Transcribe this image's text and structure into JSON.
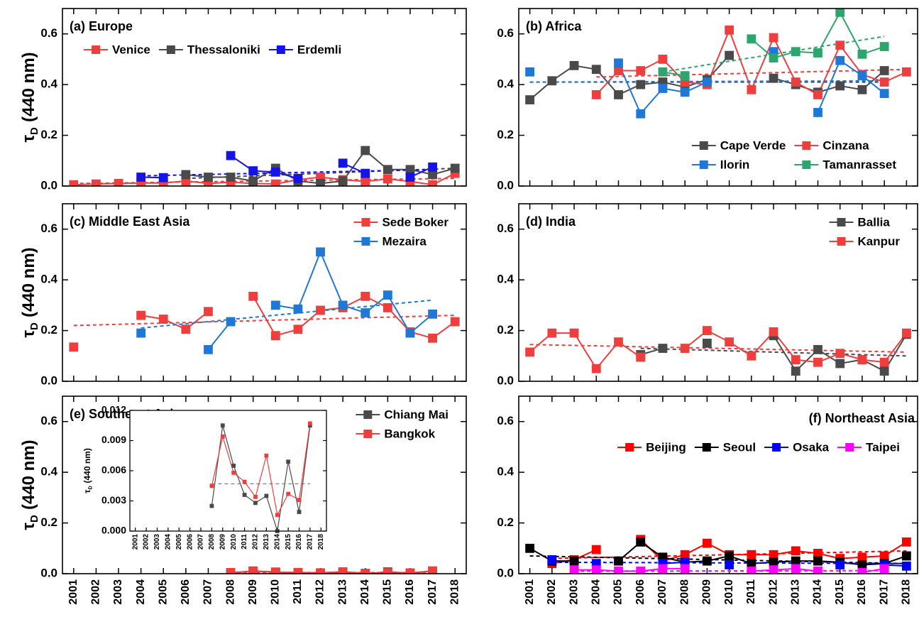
{
  "chart_data": [
    {
      "type": "line",
      "title": "(a) Europe",
      "title_loc": "upper-left",
      "ylabel": {
        "symbol": "τ",
        "sub": "D",
        "text": "(440 nm)"
      },
      "x": [
        2001,
        2002,
        2003,
        2004,
        2005,
        2006,
        2007,
        2008,
        2009,
        2010,
        2011,
        2012,
        2013,
        2014,
        2015,
        2016,
        2017,
        2018
      ],
      "xlim": [
        2000.5,
        2018.5
      ],
      "ylim": [
        0,
        0.7
      ],
      "yticks": [
        {
          "value": 0,
          "label": "0.0"
        },
        {
          "value": 0.2,
          "label": "0.2"
        },
        {
          "value": 0.4,
          "label": "0.4"
        },
        {
          "value": 0.6,
          "label": "0.6"
        }
      ],
      "xtick_labels": false,
      "legend": {
        "loc": "upper-left",
        "ncol": 3
      },
      "series": [
        {
          "name": "Venice",
          "color": "#ee3e3e",
          "values": [
            0.005,
            0.008,
            0.01,
            0.012,
            0.012,
            0.02,
            0.01,
            0.015,
            0.01,
            0.008,
            0.025,
            0.035,
            0.025,
            0.018,
            0.028,
            0.018,
            0.005,
            0.05
          ],
          "trend": {
            "x": [
              2001,
              2018
            ],
            "values": [
              0.01,
              0.03
            ]
          }
        },
        {
          "name": "Thessaloniki",
          "color": "#4a4a4a",
          "values": [
            null,
            null,
            null,
            null,
            null,
            0.045,
            0.035,
            0.035,
            0.02,
            0.07,
            0.02,
            0.01,
            0.02,
            0.14,
            0.065,
            0.065,
            0.045,
            0.07
          ],
          "trend": {
            "x": [
              2006,
              2018
            ],
            "values": [
              0.03,
              0.07
            ]
          }
        },
        {
          "name": "Erdemli",
          "color": "#1414e6",
          "values": [
            null,
            null,
            null,
            0.035,
            0.033,
            null,
            null,
            0.12,
            0.06,
            0.055,
            0.03,
            null,
            0.09,
            0.05,
            null,
            0.035,
            0.075,
            null
          ],
          "trend": {
            "x": [
              2004,
              2017
            ],
            "values": [
              0.04,
              0.065
            ]
          }
        }
      ]
    },
    {
      "type": "line",
      "title": "(b) Africa",
      "title_loc": "upper-left",
      "x": [
        2001,
        2002,
        2003,
        2004,
        2005,
        2006,
        2007,
        2008,
        2009,
        2010,
        2011,
        2012,
        2013,
        2014,
        2015,
        2016,
        2017,
        2018
      ],
      "xlim": [
        2000.5,
        2018.5
      ],
      "ylim": [
        0,
        0.7
      ],
      "yticks": [
        {
          "value": 0,
          "label": "0.0"
        },
        {
          "value": 0.2,
          "label": "0.2"
        },
        {
          "value": 0.4,
          "label": "0.4"
        },
        {
          "value": 0.6,
          "label": "0.6"
        }
      ],
      "xtick_labels": false,
      "legend": {
        "loc": "lower-right",
        "ncol": 2
      },
      "series": [
        {
          "name": "Cape Verde",
          "color": "#4a4a4a",
          "values": [
            0.34,
            0.415,
            0.475,
            0.46,
            0.36,
            0.4,
            0.41,
            0.39,
            0.42,
            0.515,
            null,
            0.425,
            0.4,
            0.37,
            0.395,
            0.38,
            0.455,
            null
          ],
          "trend": {
            "x": [
              2001,
              2017
            ],
            "values": [
              0.41,
              0.41
            ]
          }
        },
        {
          "name": "Cinzana",
          "color": "#ee3e3e",
          "values": [
            null,
            null,
            null,
            0.36,
            0.455,
            0.455,
            0.5,
            0.41,
            0.4,
            0.615,
            0.38,
            0.585,
            0.41,
            0.36,
            0.555,
            0.44,
            0.41,
            0.45
          ],
          "trend": {
            "x": [
              2004,
              2018
            ],
            "values": [
              0.43,
              0.46
            ]
          }
        },
        {
          "name": "Ilorin",
          "color": "#1f78d8",
          "values": [
            0.45,
            null,
            null,
            null,
            0.485,
            0.285,
            0.385,
            0.37,
            0.41,
            null,
            null,
            0.53,
            null,
            0.29,
            0.495,
            0.435,
            0.365,
            null
          ],
          "trend": {
            "x": [
              2001,
              2017
            ],
            "values": [
              0.41,
              0.415
            ]
          }
        },
        {
          "name": "Tamanrasset",
          "color": "#2ca66c",
          "values": [
            null,
            null,
            null,
            null,
            null,
            null,
            0.45,
            0.435,
            null,
            null,
            0.58,
            0.505,
            0.53,
            0.525,
            0.685,
            0.52,
            0.55,
            null
          ],
          "trend": {
            "x": [
              2007,
              2017
            ],
            "values": [
              0.45,
              0.59
            ]
          }
        }
      ]
    },
    {
      "type": "line",
      "title": "(c) Middle East Asia",
      "title_loc": "upper-left",
      "ylabel": {
        "symbol": "τ",
        "sub": "D",
        "text": "(440 nm)"
      },
      "x": [
        2001,
        2002,
        2003,
        2004,
        2005,
        2006,
        2007,
        2008,
        2009,
        2010,
        2011,
        2012,
        2013,
        2014,
        2015,
        2016,
        2017,
        2018
      ],
      "xlim": [
        2000.5,
        2018.5
      ],
      "ylim": [
        0,
        0.7
      ],
      "yticks": [
        {
          "value": 0,
          "label": "0.0"
        },
        {
          "value": 0.2,
          "label": "0.2"
        },
        {
          "value": 0.4,
          "label": "0.4"
        },
        {
          "value": 0.6,
          "label": "0.6"
        }
      ],
      "xtick_labels": false,
      "legend": {
        "loc": "upper-right",
        "ncol": 1
      },
      "series": [
        {
          "name": "Sede Boker",
          "color": "#ee3e3e",
          "values": [
            0.135,
            null,
            null,
            0.26,
            0.245,
            0.205,
            0.275,
            null,
            0.335,
            0.18,
            0.205,
            0.28,
            0.29,
            0.335,
            0.29,
            0.195,
            0.17,
            0.235
          ],
          "trend": {
            "x": [
              2001,
              2018
            ],
            "values": [
              0.22,
              0.26
            ]
          }
        },
        {
          "name": "Mezaira",
          "color": "#1f78d8",
          "values": [
            null,
            null,
            null,
            0.19,
            null,
            null,
            0.125,
            0.235,
            null,
            0.3,
            0.285,
            0.51,
            0.3,
            0.27,
            0.34,
            0.19,
            0.265,
            null
          ],
          "trend": {
            "x": [
              2004,
              2017
            ],
            "values": [
              0.21,
              0.32
            ]
          }
        }
      ]
    },
    {
      "type": "line",
      "title": "(d) India",
      "title_loc": "upper-left",
      "x": [
        2001,
        2002,
        2003,
        2004,
        2005,
        2006,
        2007,
        2008,
        2009,
        2010,
        2011,
        2012,
        2013,
        2014,
        2015,
        2016,
        2017,
        2018
      ],
      "xlim": [
        2000.5,
        2018.5
      ],
      "ylim": [
        0,
        0.7
      ],
      "yticks": [
        {
          "value": 0,
          "label": "0.0"
        },
        {
          "value": 0.2,
          "label": "0.2"
        },
        {
          "value": 0.4,
          "label": "0.4"
        },
        {
          "value": 0.6,
          "label": "0.6"
        }
      ],
      "xtick_labels": false,
      "legend": {
        "loc": "upper-right",
        "ncol": 1
      },
      "series": [
        {
          "name": "Ballia",
          "color": "#4a4a4a",
          "values": [
            null,
            null,
            null,
            null,
            null,
            0.105,
            0.13,
            null,
            0.15,
            null,
            null,
            0.18,
            0.04,
            0.125,
            0.07,
            0.085,
            0.04,
            0.185
          ],
          "trend": {
            "x": [
              2006,
              2018
            ],
            "values": [
              0.13,
              0.1
            ]
          }
        },
        {
          "name": "Kanpur",
          "color": "#ee3e3e",
          "values": [
            0.115,
            0.19,
            0.19,
            0.05,
            0.155,
            0.095,
            null,
            0.13,
            0.2,
            0.155,
            0.1,
            0.195,
            0.085,
            0.075,
            0.11,
            0.085,
            0.075,
            0.19
          ],
          "trend": {
            "x": [
              2001,
              2018
            ],
            "values": [
              0.145,
              0.115
            ]
          }
        }
      ]
    },
    {
      "type": "line",
      "title": "(e) Southeast Asia",
      "title_loc": "upper-left",
      "ylabel": {
        "symbol": "τ",
        "sub": "D",
        "text": "(440 nm)"
      },
      "x": [
        2001,
        2002,
        2003,
        2004,
        2005,
        2006,
        2007,
        2008,
        2009,
        2010,
        2011,
        2012,
        2013,
        2014,
        2015,
        2016,
        2017,
        2018
      ],
      "xlim": [
        2000.5,
        2018.5
      ],
      "ylim": [
        0,
        0.7
      ],
      "yticks": [
        {
          "value": 0,
          "label": "0.0"
        },
        {
          "value": 0.2,
          "label": "0.2"
        },
        {
          "value": 0.4,
          "label": "0.4"
        },
        {
          "value": 0.6,
          "label": "0.6"
        }
      ],
      "xtick_labels": true,
      "legend": {
        "loc": "upper-right",
        "ncol": 1
      },
      "series": [
        {
          "name": "Chiang Mai",
          "color": "#4a4a4a",
          "values": [
            null,
            null,
            null,
            null,
            null,
            null,
            null,
            0.0025,
            0.0105,
            0.0065,
            0.0036,
            0.0028,
            0.0035,
            0.0,
            0.0069,
            0.0019,
            0.0105,
            null
          ]
        },
        {
          "name": "Bangkok",
          "color": "#ee3e3e",
          "values": [
            null,
            null,
            null,
            null,
            null,
            null,
            null,
            0.0045,
            0.0094,
            0.0058,
            0.0049,
            0.0034,
            0.0075,
            0.0016,
            0.0037,
            0.0031,
            0.0107,
            null
          ],
          "trend": {
            "x": [
              2008,
              2017
            ],
            "values": [
              0.0047,
              0.0047
            ]
          }
        }
      ],
      "inset": {
        "ylim": [
          0,
          0.012
        ],
        "yticks": [
          {
            "value": 0,
            "label": "0.000"
          },
          {
            "value": 0.003,
            "label": "0.003"
          },
          {
            "value": 0.006,
            "label": "0.006"
          },
          {
            "value": 0.009,
            "label": "0.009"
          },
          {
            "value": 0.012,
            "label": "0.012"
          }
        ],
        "ylabel": {
          "symbol": "τ",
          "sub": "D",
          "text": "(440 nm)"
        }
      }
    },
    {
      "type": "line",
      "title": "(f) Northeast Asia",
      "title_loc": "upper-right",
      "x": [
        2001,
        2002,
        2003,
        2004,
        2005,
        2006,
        2007,
        2008,
        2009,
        2010,
        2011,
        2012,
        2013,
        2014,
        2015,
        2016,
        2017,
        2018
      ],
      "xlim": [
        2000.5,
        2018.5
      ],
      "ylim": [
        0,
        0.7
      ],
      "yticks": [
        {
          "value": 0,
          "label": "0.0"
        },
        {
          "value": 0.2,
          "label": "0.2"
        },
        {
          "value": 0.4,
          "label": "0.4"
        },
        {
          "value": 0.6,
          "label": "0.6"
        }
      ],
      "xtick_labels": true,
      "legend": {
        "loc": "upper-right",
        "ncol": 4
      },
      "series": [
        {
          "name": "Beijing",
          "color": "#ff0000",
          "values": [
            null,
            0.04,
            0.055,
            0.095,
            null,
            0.135,
            0.05,
            0.075,
            0.12,
            0.075,
            0.075,
            0.075,
            0.09,
            0.08,
            0.06,
            0.065,
            0.07,
            0.125
          ],
          "trend": {
            "x": [
              2002,
              2018
            ],
            "values": [
              0.06,
              0.09
            ]
          }
        },
        {
          "name": "Seoul",
          "color": "#000000",
          "values": [
            0.1,
            0.05,
            0.05,
            null,
            0.05,
            0.125,
            0.065,
            0.045,
            0.05,
            0.07,
            0.04,
            0.045,
            0.05,
            0.05,
            0.045,
            0.035,
            0.04,
            0.07
          ],
          "trend": {
            "x": [
              2001,
              2018
            ],
            "values": [
              0.07,
              0.04
            ]
          }
        },
        {
          "name": "Osaka",
          "color": "#0000ff",
          "values": [
            null,
            0.055,
            null,
            0.04,
            null,
            null,
            0.04,
            0.045,
            null,
            0.035,
            null,
            null,
            null,
            null,
            0.035,
            null,
            0.035,
            0.03
          ],
          "trend": {
            "x": [
              2002,
              2018
            ],
            "values": [
              0.045,
              0.04
            ]
          }
        },
        {
          "name": "Taipei",
          "color": "#ff00ff",
          "values": [
            null,
            null,
            0.015,
            0.015,
            0.01,
            0.01,
            0.02,
            0.02,
            null,
            null,
            0.01,
            0.015,
            0.02,
            0.01,
            null,
            0.005,
            0.02,
            null
          ],
          "trend": {
            "x": [
              2003,
              2017
            ],
            "values": [
              0.01,
              0.012
            ]
          }
        }
      ]
    }
  ]
}
